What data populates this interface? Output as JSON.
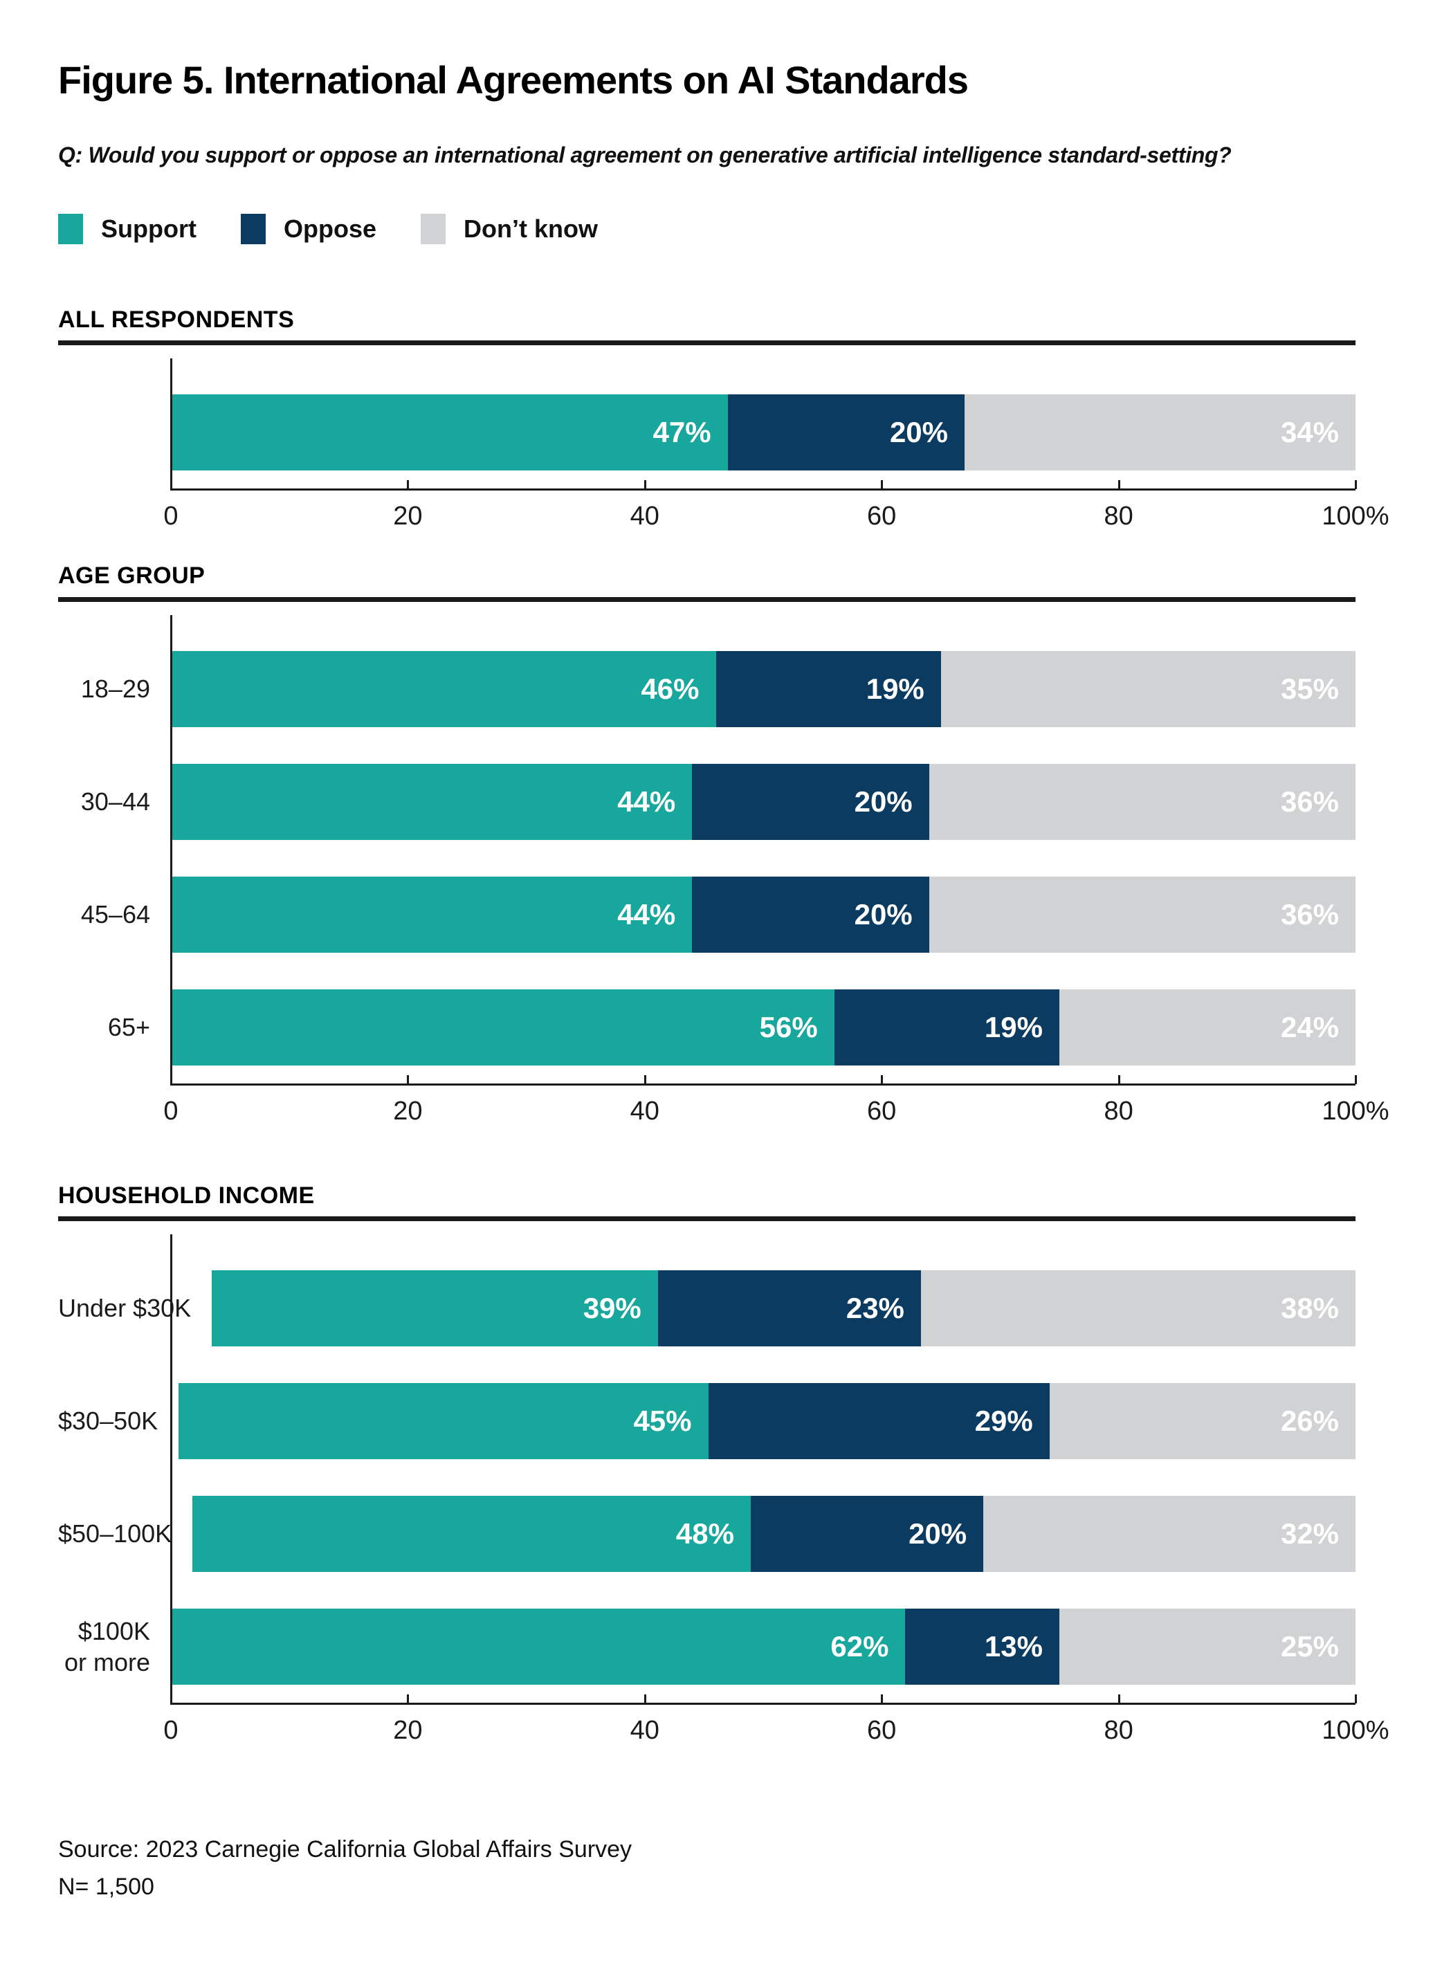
{
  "figure": {
    "title": "Figure 5. International Agreements on AI Standards",
    "question": "Q: Would you support or oppose an international agreement on generative artificial intelligence standard-setting?",
    "source": "Source: 2023 Carnegie California Global Affairs Survey",
    "sample_size": "N= 1,500"
  },
  "legend": {
    "items": [
      {
        "label": "Support",
        "color": "#18A79C"
      },
      {
        "label": "Oppose",
        "color": "#0C3B61"
      },
      {
        "label": "Don’t know",
        "color": "#D1D2D4"
      }
    ]
  },
  "axis": {
    "tick_labels": [
      "0",
      "20",
      "40",
      "60",
      "80",
      "100%"
    ],
    "tick_values": [
      0,
      20,
      40,
      60,
      80,
      100
    ]
  },
  "chart_data": [
    {
      "type": "bar",
      "stacked": true,
      "orientation": "horizontal",
      "title": "ALL RESPONDENTS",
      "categories": [
        ""
      ],
      "series": [
        {
          "name": "Support",
          "values": [
            47
          ]
        },
        {
          "name": "Oppose",
          "values": [
            20
          ]
        },
        {
          "name": "Don't know",
          "values": [
            34
          ]
        }
      ],
      "xlim": [
        0,
        100
      ],
      "grid": false,
      "legend_position": "top"
    },
    {
      "type": "bar",
      "stacked": true,
      "orientation": "horizontal",
      "title": "AGE GROUP",
      "categories": [
        "18–29",
        "30–44",
        "45–64",
        "65+"
      ],
      "series": [
        {
          "name": "Support",
          "values": [
            46,
            44,
            44,
            56
          ]
        },
        {
          "name": "Oppose",
          "values": [
            19,
            20,
            20,
            19
          ]
        },
        {
          "name": "Don't know",
          "values": [
            35,
            36,
            36,
            24
          ]
        }
      ],
      "xlim": [
        0,
        100
      ],
      "grid": false,
      "legend_position": "top"
    },
    {
      "type": "bar",
      "stacked": true,
      "orientation": "horizontal",
      "title": "HOUSEHOLD INCOME",
      "categories": [
        "Under $30K",
        "$30–50K",
        "$50–100K",
        "$100K\nor more"
      ],
      "series": [
        {
          "name": "Support",
          "values": [
            39,
            45,
            48,
            62
          ]
        },
        {
          "name": "Oppose",
          "values": [
            23,
            29,
            20,
            13
          ]
        },
        {
          "name": "Don't know",
          "values": [
            38,
            26,
            32,
            25
          ]
        }
      ],
      "xlim": [
        0,
        100
      ],
      "grid": false,
      "legend_position": "top"
    }
  ]
}
